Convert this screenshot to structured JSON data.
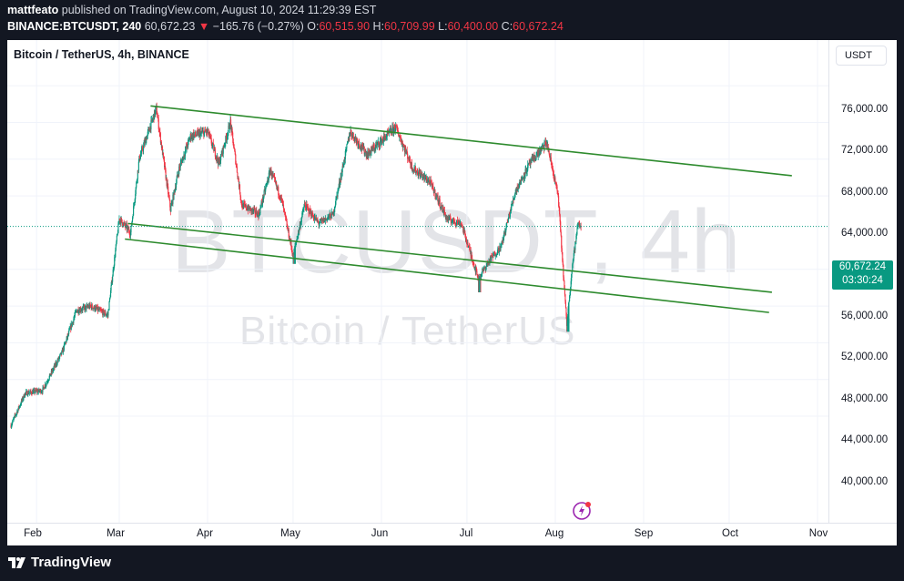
{
  "header": {
    "author": "mattfeato",
    "published_text": "published on TradingView.com, August 10, 2024 11:29:39 EST",
    "symbol": "BINANCE:BTCUSDT, 240",
    "last": "60,672.23",
    "arrow": "▼",
    "change": "−165.76 (−0.27%)",
    "o_label": "O:",
    "o_value": "60,515.90",
    "h_label": "H:",
    "h_value": "60,709.99",
    "l_label": "L:",
    "l_value": "60,400.00",
    "c_label": "C:",
    "c_value": "60,672.24"
  },
  "chart": {
    "title": "Bitcoin / TetherUS, 4h, BINANCE",
    "watermark_symbol": "BTCUSDT, 4h",
    "watermark_name": "Bitcoin / TetherUS",
    "currency_button": "USDT",
    "price_tag": {
      "price": "60,672.24",
      "countdown": "03:30:24"
    },
    "y_axis": [
      "76,000.00",
      "72,000.00",
      "68,000.00",
      "64,000.00",
      "56,000.00",
      "52,000.00",
      "48,000.00",
      "44,000.00",
      "40,000.00"
    ],
    "x_axis": [
      "Feb",
      "Mar",
      "Apr",
      "May",
      "Jun",
      "Jul",
      "Aug",
      "Sep",
      "Oct",
      "Nov"
    ],
    "colors": {
      "up": "#089981",
      "down": "#f23645",
      "channel": "#2e8b2e",
      "price_tag": "#089981"
    },
    "icons": {
      "flash": "lightning-bolt-icon",
      "logo": "tradingview-logo-icon"
    }
  },
  "footer": {
    "brand": "TradingView"
  },
  "chart_data": {
    "type": "candlestick",
    "title": "Bitcoin / TetherUS, 4h, BINANCE",
    "ylim": [
      37500,
      80500
    ],
    "y_ticks": [
      40000,
      44000,
      48000,
      52000,
      56000,
      64000,
      68000,
      72000,
      76000
    ],
    "x_ticks": [
      "Feb",
      "Mar",
      "Apr",
      "May",
      "Jun",
      "Jul",
      "Aug",
      "Sep",
      "Oct",
      "Nov"
    ],
    "last_price": 60672.24,
    "price_path": [
      [
        "2024-01-23",
        39000
      ],
      [
        "2024-01-28",
        42500
      ],
      [
        "2024-02-03",
        42800
      ],
      [
        "2024-02-10",
        47000
      ],
      [
        "2024-02-15",
        51500
      ],
      [
        "2024-02-20",
        52000
      ],
      [
        "2024-02-26",
        51000
      ],
      [
        "2024-03-01",
        61500
      ],
      [
        "2024-03-05",
        60000
      ],
      [
        "2024-03-08",
        68000
      ],
      [
        "2024-03-14",
        73500
      ],
      [
        "2024-03-19",
        62500
      ],
      [
        "2024-03-22",
        67000
      ],
      [
        "2024-03-26",
        70500
      ],
      [
        "2024-04-01",
        71000
      ],
      [
        "2024-04-05",
        67500
      ],
      [
        "2024-04-09",
        72000
      ],
      [
        "2024-04-13",
        63000
      ],
      [
        "2024-04-19",
        62000
      ],
      [
        "2024-04-23",
        66800
      ],
      [
        "2024-04-27",
        63500
      ],
      [
        "2024-05-01",
        57500
      ],
      [
        "2024-05-05",
        63000
      ],
      [
        "2024-05-10",
        61000
      ],
      [
        "2024-05-15",
        62000
      ],
      [
        "2024-05-21",
        71000
      ],
      [
        "2024-05-27",
        68500
      ],
      [
        "2024-06-01",
        70000
      ],
      [
        "2024-06-06",
        71500
      ],
      [
        "2024-06-12",
        67000
      ],
      [
        "2024-06-18",
        65500
      ],
      [
        "2024-06-24",
        61500
      ],
      [
        "2024-06-29",
        61000
      ],
      [
        "2024-07-05",
        55000
      ],
      [
        "2024-07-09",
        57000
      ],
      [
        "2024-07-13",
        58500
      ],
      [
        "2024-07-18",
        64500
      ],
      [
        "2024-07-23",
        67500
      ],
      [
        "2024-07-29",
        69800
      ],
      [
        "2024-08-02",
        64000
      ],
      [
        "2024-08-05",
        50000
      ],
      [
        "2024-08-07",
        56500
      ],
      [
        "2024-08-09",
        61000
      ],
      [
        "2024-08-10",
        60672
      ]
    ],
    "trendlines": [
      {
        "name": "channel-top",
        "start": [
          "2024-03-12",
          73800
        ],
        "end": [
          "2024-10-23",
          66200
        ]
      },
      {
        "name": "channel-mid",
        "start": [
          "2024-03-04",
          61000
        ],
        "end": [
          "2024-10-16",
          53500
        ]
      },
      {
        "name": "channel-bottom",
        "start": [
          "2024-03-03",
          59300
        ],
        "end": [
          "2024-10-15",
          51300
        ]
      }
    ]
  }
}
